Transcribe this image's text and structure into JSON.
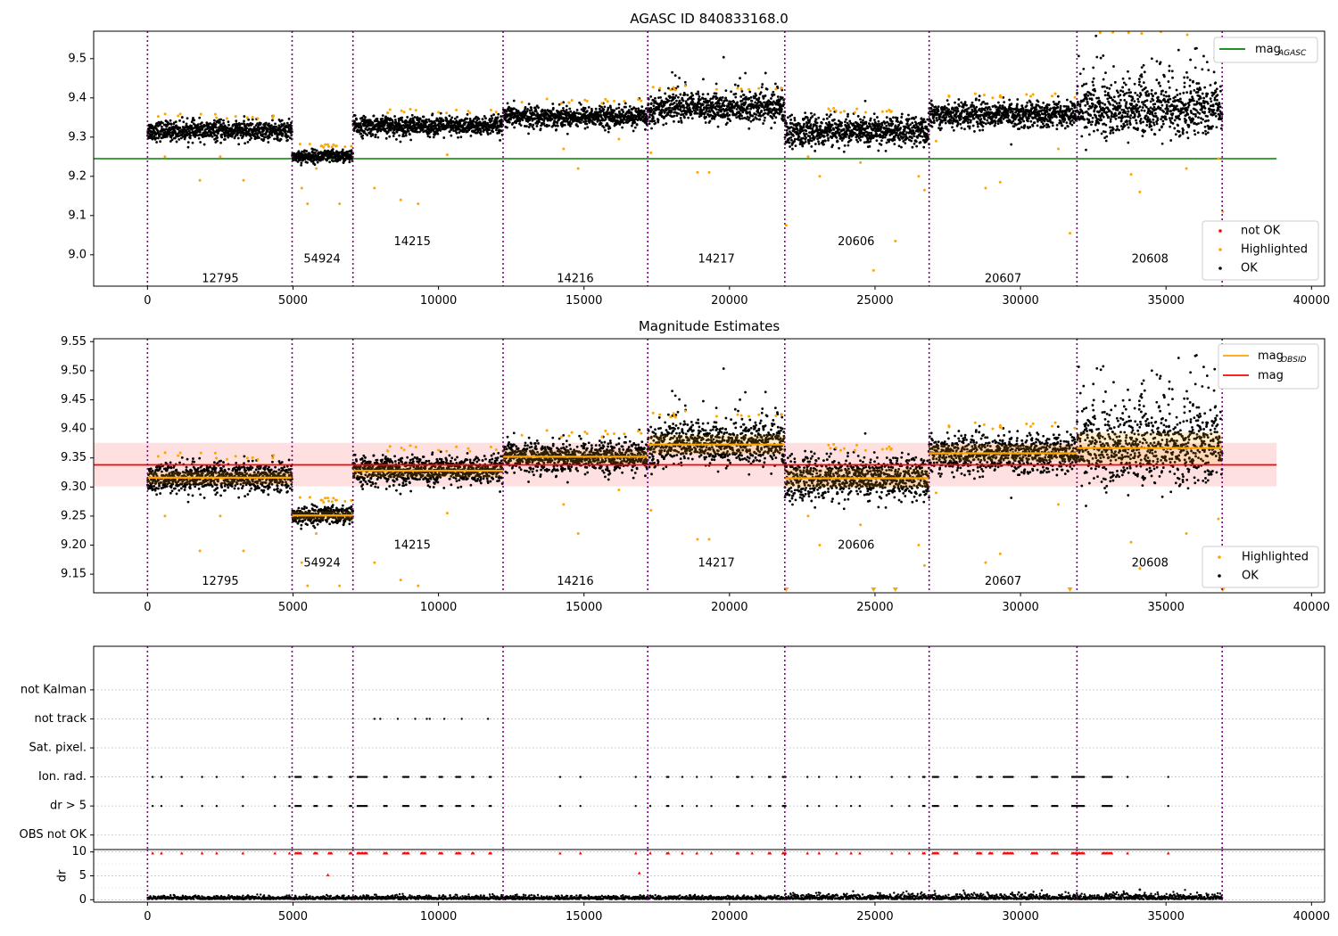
{
  "chart_data": [
    {
      "type": "scatter",
      "title": "AGASC ID 840833168.0",
      "xlim": [
        -1850,
        40450
      ],
      "ylim": [
        8.92,
        9.57
      ],
      "xticks": [
        0,
        5000,
        10000,
        15000,
        20000,
        25000,
        30000,
        35000,
        40000
      ],
      "yticks": [
        9.0,
        9.1,
        9.2,
        9.3,
        9.4,
        9.5
      ],
      "mag_agasc": 9.245,
      "legend_lines": [
        {
          "label": "mag",
          "sub": "AGASC",
          "color": "#008000"
        }
      ],
      "legend_points": [
        {
          "label": "not OK",
          "color": "#ff0000"
        },
        {
          "label": "Highlighted",
          "color": "#ffa500"
        },
        {
          "label": "OK",
          "color": "#000000"
        }
      ],
      "obs_labels": [
        {
          "x": 2500,
          "y": 8.93,
          "text": "12795"
        },
        {
          "x": 6000,
          "y": 8.98,
          "text": "54924"
        },
        {
          "x": 9100,
          "y": 9.025,
          "text": "14215"
        },
        {
          "x": 14700,
          "y": 8.93,
          "text": "14216"
        },
        {
          "x": 19550,
          "y": 8.98,
          "text": "14217"
        },
        {
          "x": 24350,
          "y": 9.025,
          "text": "20606"
        },
        {
          "x": 29400,
          "y": 8.93,
          "text": "20607"
        },
        {
          "x": 34450,
          "y": 8.98,
          "text": "20608"
        }
      ]
    },
    {
      "type": "scatter",
      "title": "Magnitude Estimates",
      "xlim": [
        -1850,
        40450
      ],
      "ylim": [
        9.118,
        9.555
      ],
      "xticks": [
        0,
        5000,
        10000,
        15000,
        20000,
        25000,
        30000,
        35000,
        40000
      ],
      "yticks": [
        9.15,
        9.2,
        9.25,
        9.3,
        9.35,
        9.4,
        9.45,
        9.5,
        9.55
      ],
      "mag": 9.338,
      "mag_band": [
        9.301,
        9.376
      ],
      "legend_lines": [
        {
          "label": "mag",
          "sub": "OBSID",
          "color": "#ffa500"
        },
        {
          "label": "mag",
          "sub": "",
          "color": "#ff0000"
        }
      ],
      "legend_points": [
        {
          "label": "Highlighted",
          "color": "#ffa500"
        },
        {
          "label": "OK",
          "color": "#000000"
        }
      ],
      "obs_labels": [
        {
          "x": 2500,
          "y": 9.132,
          "text": "12795"
        },
        {
          "x": 6000,
          "y": 9.163,
          "text": "54924"
        },
        {
          "x": 9100,
          "y": 9.194,
          "text": "14215"
        },
        {
          "x": 14700,
          "y": 9.132,
          "text": "14216"
        },
        {
          "x": 19550,
          "y": 9.163,
          "text": "14217"
        },
        {
          "x": 24350,
          "y": 9.194,
          "text": "20606"
        },
        {
          "x": 29400,
          "y": 9.132,
          "text": "20607"
        },
        {
          "x": 34450,
          "y": 9.163,
          "text": "20608"
        }
      ]
    },
    {
      "type": "scatter",
      "title": "",
      "xlim": [
        -1850,
        40450
      ],
      "ylim": [
        -0.5,
        6.5
      ],
      "categories": [
        "OBS not OK",
        "dr > 5",
        "Ion. rad.",
        "Sat. pixel.",
        "not track",
        "not Kalman"
      ]
    },
    {
      "type": "scatter",
      "title": "",
      "xlim": [
        -1850,
        40450
      ],
      "ylim": [
        -0.5,
        10.5
      ],
      "xticks": [
        0,
        5000,
        10000,
        15000,
        20000,
        25000,
        30000,
        35000,
        40000
      ],
      "yticks": [
        0,
        5,
        10
      ],
      "ylabel": "dr"
    }
  ],
  "observations": [
    {
      "obsid": "12795",
      "start": 0,
      "end": 4970,
      "mag": 9.316,
      "noise": 0.012
    },
    {
      "obsid": "54924",
      "start": 4970,
      "end": 7060,
      "mag": 9.251,
      "noise": 0.008
    },
    {
      "obsid": "14215",
      "start": 7060,
      "end": 12220,
      "mag": 9.328,
      "noise": 0.012
    },
    {
      "obsid": "14216",
      "start": 12220,
      "end": 17190,
      "mag": 9.352,
      "noise": 0.013
    },
    {
      "obsid": "14217",
      "start": 17190,
      "end": 21900,
      "mag": 9.373,
      "noise": 0.018
    },
    {
      "obsid": "20606",
      "start": 21900,
      "end": 26860,
      "mag": 9.315,
      "noise": 0.018
    },
    {
      "obsid": "20607",
      "start": 26860,
      "end": 31940,
      "mag": 9.358,
      "noise": 0.016
    },
    {
      "obsid": "20608",
      "start": 31940,
      "end": 36930,
      "mag": 9.367,
      "noise": 0.03
    }
  ],
  "boundaries": [
    0,
    4970,
    7060,
    12220,
    17190,
    21900,
    26860,
    31940,
    36930
  ],
  "colors": {
    "ok": "#000000",
    "highlighted": "#ffa500",
    "not_ok": "#ff0000",
    "agasc_line": "#008000",
    "mag_line": "#ff0000",
    "mag_band": "#ffe0e0",
    "obs_line": "#ffa500",
    "boundary_line": "#800080",
    "grid": "#b0b0b0"
  }
}
